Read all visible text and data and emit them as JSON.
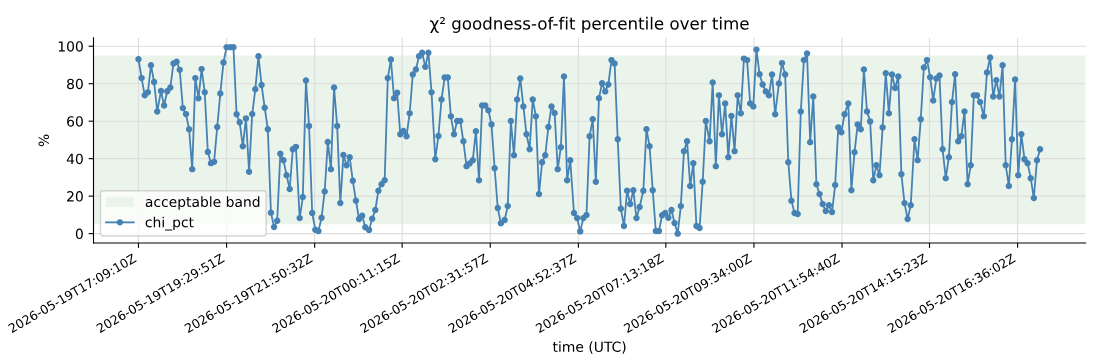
{
  "chart_data": {
    "type": "line",
    "title": "χ² goodness-of-fit percentile over time",
    "xlabel": "time (UTC)",
    "ylabel": "%",
    "xlim": [
      "2026-05-19T15:57",
      "2026-05-20T18:25"
    ],
    "ylim": [
      -5,
      104.5
    ],
    "xticks": [
      {
        "value": "2026-05-19T17:09",
        "label": "2026-05-19T17:09:10Z"
      },
      {
        "value": "2026-05-19T19:30",
        "label": "2026-05-19T19:29:51Z"
      },
      {
        "value": "2026-05-19T21:51",
        "label": "2026-05-19T21:50:32Z"
      },
      {
        "value": "2026-05-20T00:11",
        "label": "2026-05-20T00:11:15Z"
      },
      {
        "value": "2026-05-20T02:32",
        "label": "2026-05-20T02:31:57Z"
      },
      {
        "value": "2026-05-20T04:53",
        "label": "2026-05-20T04:52:37Z"
      },
      {
        "value": "2026-05-20T07:13",
        "label": "2026-05-20T07:13:18Z"
      },
      {
        "value": "2026-05-20T09:34",
        "label": "2026-05-20T09:34:00Z"
      },
      {
        "value": "2026-05-20T11:55",
        "label": "2026-05-20T11:54:40Z"
      },
      {
        "value": "2026-05-20T14:15",
        "label": "2026-05-20T14:15:23Z"
      },
      {
        "value": "2026-05-20T16:36",
        "label": "2026-05-20T16:36:02Z"
      }
    ],
    "yticks": [
      0,
      20,
      40,
      60,
      80,
      100
    ],
    "grid": true,
    "legend": "bottom left",
    "marker": "circle",
    "line_style": "solid",
    "bands": [
      {
        "axis": "y",
        "from": 5,
        "to": 95,
        "label": "acceptable band",
        "color": "#eaf4ea"
      }
    ],
    "x": [
      "2026-05-19T17:09",
      "2026-05-19T17:14",
      "2026-05-19T17:19",
      "2026-05-19T17:24",
      "2026-05-19T17:29",
      "2026-05-19T17:34",
      "2026-05-19T17:39",
      "2026-05-19T17:45",
      "2026-05-19T17:50",
      "2026-05-19T17:55",
      "2026-05-19T18:00",
      "2026-05-19T18:05",
      "2026-05-19T18:10",
      "2026-05-19T18:15",
      "2026-05-19T18:20",
      "2026-05-19T18:25",
      "2026-05-19T18:30",
      "2026-05-19T18:35",
      "2026-05-19T18:40",
      "2026-05-19T18:45",
      "2026-05-19T18:50",
      "2026-05-19T18:55",
      "2026-05-19T19:00",
      "2026-05-19T19:05",
      "2026-05-19T19:10",
      "2026-05-19T19:15",
      "2026-05-19T19:20",
      "2026-05-19T19:25",
      "2026-05-19T19:30",
      "2026-05-19T19:36",
      "2026-05-19T19:41",
      "2026-05-19T19:46",
      "2026-05-19T19:51",
      "2026-05-19T19:56",
      "2026-05-19T20:01",
      "2026-05-19T20:06",
      "2026-05-19T20:11",
      "2026-05-19T20:16",
      "2026-05-19T20:21",
      "2026-05-19T20:26",
      "2026-05-19T20:31",
      "2026-05-19T20:36",
      "2026-05-19T20:41",
      "2026-05-19T20:46",
      "2026-05-19T20:51",
      "2026-05-19T20:56",
      "2026-05-19T21:01",
      "2026-05-19T21:06",
      "2026-05-19T21:11",
      "2026-05-19T21:16",
      "2026-05-19T21:21",
      "2026-05-19T21:27",
      "2026-05-19T21:32",
      "2026-05-19T21:37",
      "2026-05-19T21:42",
      "2026-05-19T21:47",
      "2026-05-19T21:52",
      "2026-05-19T21:57",
      "2026-05-19T22:02",
      "2026-05-19T22:07",
      "2026-05-19T22:12",
      "2026-05-19T22:17",
      "2026-05-19T22:22",
      "2026-05-19T22:27",
      "2026-05-19T22:32",
      "2026-05-19T22:37",
      "2026-05-19T22:42",
      "2026-05-19T22:47",
      "2026-05-19T22:52",
      "2026-05-19T22:57",
      "2026-05-19T23:02",
      "2026-05-19T23:07",
      "2026-05-19T23:12",
      "2026-05-19T23:18",
      "2026-05-19T23:23",
      "2026-05-19T23:28",
      "2026-05-19T23:33",
      "2026-05-19T23:38",
      "2026-05-19T23:43",
      "2026-05-19T23:48",
      "2026-05-19T23:53",
      "2026-05-19T23:58",
      "2026-05-20T00:03",
      "2026-05-20T00:08",
      "2026-05-20T00:13",
      "2026-05-20T00:18",
      "2026-05-20T00:23",
      "2026-05-20T00:28",
      "2026-05-20T00:33",
      "2026-05-20T00:38",
      "2026-05-20T00:43",
      "2026-05-20T00:48",
      "2026-05-20T00:53",
      "2026-05-20T00:58",
      "2026-05-20T01:04",
      "2026-05-20T01:09",
      "2026-05-20T01:14",
      "2026-05-20T01:19",
      "2026-05-20T01:24",
      "2026-05-20T01:29",
      "2026-05-20T01:34",
      "2026-05-20T01:39",
      "2026-05-20T01:44",
      "2026-05-20T01:49",
      "2026-05-20T01:54",
      "2026-05-20T01:59",
      "2026-05-20T02:04",
      "2026-05-20T02:09",
      "2026-05-20T02:14",
      "2026-05-20T02:19",
      "2026-05-20T02:24",
      "2026-05-20T02:29",
      "2026-05-20T02:34",
      "2026-05-20T02:39",
      "2026-05-20T02:44",
      "2026-05-20T02:49",
      "2026-05-20T02:55",
      "2026-05-20T03:00",
      "2026-05-20T03:05",
      "2026-05-20T03:10",
      "2026-05-20T03:15",
      "2026-05-20T03:20",
      "2026-05-20T03:25",
      "2026-05-20T03:30",
      "2026-05-20T03:35",
      "2026-05-20T03:40",
      "2026-05-20T03:45",
      "2026-05-20T03:50",
      "2026-05-20T03:55",
      "2026-05-20T04:00",
      "2026-05-20T04:05",
      "2026-05-20T04:10",
      "2026-05-20T04:15",
      "2026-05-20T04:20",
      "2026-05-20T04:25",
      "2026-05-20T04:30",
      "2026-05-20T04:35",
      "2026-05-20T04:40",
      "2026-05-20T04:46",
      "2026-05-20T04:51",
      "2026-05-20T04:56",
      "2026-05-20T05:01",
      "2026-05-20T05:06",
      "2026-05-20T05:11",
      "2026-05-20T05:16",
      "2026-05-20T05:21",
      "2026-05-20T05:26",
      "2026-05-20T05:31",
      "2026-05-20T05:36",
      "2026-05-20T05:41",
      "2026-05-20T05:46",
      "2026-05-20T05:51",
      "2026-05-20T05:56",
      "2026-05-20T06:01",
      "2026-05-20T06:06",
      "2026-05-20T06:11",
      "2026-05-20T06:16",
      "2026-05-20T06:21",
      "2026-05-20T06:26",
      "2026-05-20T06:31",
      "2026-05-20T06:37",
      "2026-05-20T06:42",
      "2026-05-20T06:47",
      "2026-05-20T06:52",
      "2026-05-20T06:57",
      "2026-05-20T07:02",
      "2026-05-20T07:07",
      "2026-05-20T07:12",
      "2026-05-20T07:17",
      "2026-05-20T07:22",
      "2026-05-20T07:27",
      "2026-05-20T07:32",
      "2026-05-20T07:37",
      "2026-05-20T07:42",
      "2026-05-20T07:47",
      "2026-05-20T07:52",
      "2026-05-20T07:57",
      "2026-05-20T08:02",
      "2026-05-20T08:07",
      "2026-05-20T08:12",
      "2026-05-20T08:17",
      "2026-05-20T08:23",
      "2026-05-20T08:28",
      "2026-05-20T08:33",
      "2026-05-20T08:38",
      "2026-05-20T08:43",
      "2026-05-20T08:48",
      "2026-05-20T08:53",
      "2026-05-20T08:58",
      "2026-05-20T09:03",
      "2026-05-20T09:08",
      "2026-05-20T09:13",
      "2026-05-20T09:18",
      "2026-05-20T09:23",
      "2026-05-20T09:28",
      "2026-05-20T09:33",
      "2026-05-20T09:38",
      "2026-05-20T09:43",
      "2026-05-20T09:48",
      "2026-05-20T09:53",
      "2026-05-20T09:58",
      "2026-05-20T10:03",
      "2026-05-20T10:08",
      "2026-05-20T10:14",
      "2026-05-20T10:19",
      "2026-05-20T10:24",
      "2026-05-20T10:29",
      "2026-05-20T10:34",
      "2026-05-20T10:39",
      "2026-05-20T10:44",
      "2026-05-20T10:49",
      "2026-05-20T10:54",
      "2026-05-20T10:59",
      "2026-05-20T11:04",
      "2026-05-20T11:09",
      "2026-05-20T11:14",
      "2026-05-20T11:19",
      "2026-05-20T11:24",
      "2026-05-20T11:29",
      "2026-05-20T11:34",
      "2026-05-20T11:39",
      "2026-05-20T11:44",
      "2026-05-20T11:49",
      "2026-05-20T11:54",
      "2026-05-20T11:59",
      "2026-05-20T12:05",
      "2026-05-20T12:10",
      "2026-05-20T12:15",
      "2026-05-20T12:20",
      "2026-05-20T12:25",
      "2026-05-20T12:30",
      "2026-05-20T12:35",
      "2026-05-20T12:40",
      "2026-05-20T12:45",
      "2026-05-20T12:50",
      "2026-05-20T12:55",
      "2026-05-20T13:00",
      "2026-05-20T13:05",
      "2026-05-20T13:10",
      "2026-05-20T13:15",
      "2026-05-20T13:20",
      "2026-05-20T13:25",
      "2026-05-20T13:30",
      "2026-05-20T13:35",
      "2026-05-20T13:40",
      "2026-05-20T13:45",
      "2026-05-20T13:51",
      "2026-05-20T13:56",
      "2026-05-20T14:01",
      "2026-05-20T14:06",
      "2026-05-20T14:11",
      "2026-05-20T14:16",
      "2026-05-20T14:21",
      "2026-05-20T14:26",
      "2026-05-20T14:31",
      "2026-05-20T14:36",
      "2026-05-20T14:41",
      "2026-05-20T14:46",
      "2026-05-20T14:51",
      "2026-05-20T14:56",
      "2026-05-20T15:01",
      "2026-05-20T15:06",
      "2026-05-20T15:11",
      "2026-05-20T15:16",
      "2026-05-20T15:21",
      "2026-05-20T15:26",
      "2026-05-20T15:31",
      "2026-05-20T15:36",
      "2026-05-20T15:42",
      "2026-05-20T15:47",
      "2026-05-20T15:52",
      "2026-05-20T15:57",
      "2026-05-20T16:02",
      "2026-05-20T16:07",
      "2026-05-20T16:12",
      "2026-05-20T16:17",
      "2026-05-20T16:22",
      "2026-05-20T16:27",
      "2026-05-20T16:32",
      "2026-05-20T16:37",
      "2026-05-20T16:42",
      "2026-05-20T16:47",
      "2026-05-20T16:52",
      "2026-05-20T16:57",
      "2026-05-20T17:02",
      "2026-05-20T17:07",
      "2026-05-20T17:12"
    ],
    "series": [
      {
        "name": "chi_pct",
        "color": "#4682b4",
        "values": [
          93.1,
          83,
          73.8,
          75.4,
          89.9,
          80.9,
          65.2,
          76.1,
          68.4,
          76,
          78,
          90.8,
          91.7,
          87.4,
          67,
          63.8,
          55.7,
          34.4,
          83,
          72.2,
          87.8,
          75.5,
          43.6,
          37.6,
          38.3,
          56.9,
          74.8,
          91.3,
          99.5,
          99.5,
          99.5,
          63.7,
          59.4,
          46.6,
          61.5,
          33,
          63.8,
          77.1,
          94.7,
          79.3,
          67.2,
          55.7,
          11.2,
          3.5,
          6.9,
          42.6,
          39.2,
          31.2,
          23.8,
          45,
          46.3,
          8.3,
          19.5,
          81.7,
          57.4,
          11,
          2.1,
          1.4,
          8.5,
          22.5,
          48.9,
          34.4,
          78,
          57.4,
          16.3,
          42,
          36.5,
          40.8,
          28.2,
          17.6,
          7.8,
          9.6,
          3.4,
          2,
          8,
          12.6,
          22.9,
          26.4,
          28.5,
          83,
          92.9,
          72.3,
          75.2,
          53,
          54.8,
          52,
          64.2,
          84.9,
          87.6,
          94.7,
          96.5,
          89,
          96.5,
          75.4,
          39.7,
          52.1,
          71.6,
          83.3,
          83.3,
          62.6,
          53,
          60.1,
          60.1,
          49.3,
          36,
          37.4,
          39.2,
          54.6,
          28.5,
          68.4,
          68.4,
          65.8,
          58.3,
          34.9,
          13.7,
          5.5,
          7.3,
          14.7,
          60.1,
          41.8,
          71.6,
          82.8,
          67.9,
          53,
          45,
          71.6,
          62.6,
          21.1,
          38.1,
          41.8,
          56.9,
          67.9,
          64.4,
          34.4,
          46.1,
          83.9,
          28.5,
          39.2,
          11,
          8.3,
          1.2,
          8.3,
          9.9,
          52,
          61,
          27.7,
          72.3,
          80.3,
          75.9,
          79.6,
          92.6,
          90.8,
          50.4,
          13.3,
          4.1,
          22.9,
          15.8,
          23.2,
          8.3,
          14.2,
          22.9,
          55.7,
          46.6,
          23.2,
          1.4,
          1.4,
          9.8,
          11,
          8.5,
          12.6,
          5.7,
          0,
          14.7,
          44,
          49.3,
          25.4,
          37.6,
          4.1,
          3,
          27.7,
          60.1,
          49.3,
          80.7,
          36,
          73.8,
          53,
          69.5,
          40.8,
          62.8,
          44,
          73.8,
          64.2,
          93.4,
          92.6,
          69.5,
          67.9,
          98.2,
          85.1,
          79.6,
          75.9,
          73.8,
          84.9,
          63.7,
          80.1,
          91,
          84.9,
          38.1,
          17.6,
          11,
          10.5,
          65.2,
          92.6,
          96.1,
          48.8,
          73.2,
          26.4,
          21.1,
          15.8,
          12.1,
          15.2,
          11.5,
          25.9,
          56.7,
          54.1,
          63.7,
          69.5,
          23.2,
          43.4,
          58.3,
          55.7,
          87.6,
          65.2,
          59.9,
          28.5,
          36.5,
          31.2,
          56.7,
          85.6,
          64.2,
          84.9,
          77.7,
          83.9,
          31.7,
          16.3,
          7.8,
          15.2,
          50.4,
          39.2,
          61,
          88.7,
          92.6,
          83.5,
          71.1,
          82.8,
          84.4,
          45,
          29.6,
          40.8,
          70.2,
          85.1,
          49.3,
          52,
          65.2,
          26.4,
          36.5,
          73.8,
          73.8,
          70.2,
          62.6,
          86,
          94,
          73.2,
          81.9,
          73.2,
          89.9,
          36.5,
          25.4,
          50.4,
          82.3,
          31.2,
          53,
          39.7,
          37.6,
          29.6,
          19,
          39.2,
          45
        ]
      }
    ]
  }
}
